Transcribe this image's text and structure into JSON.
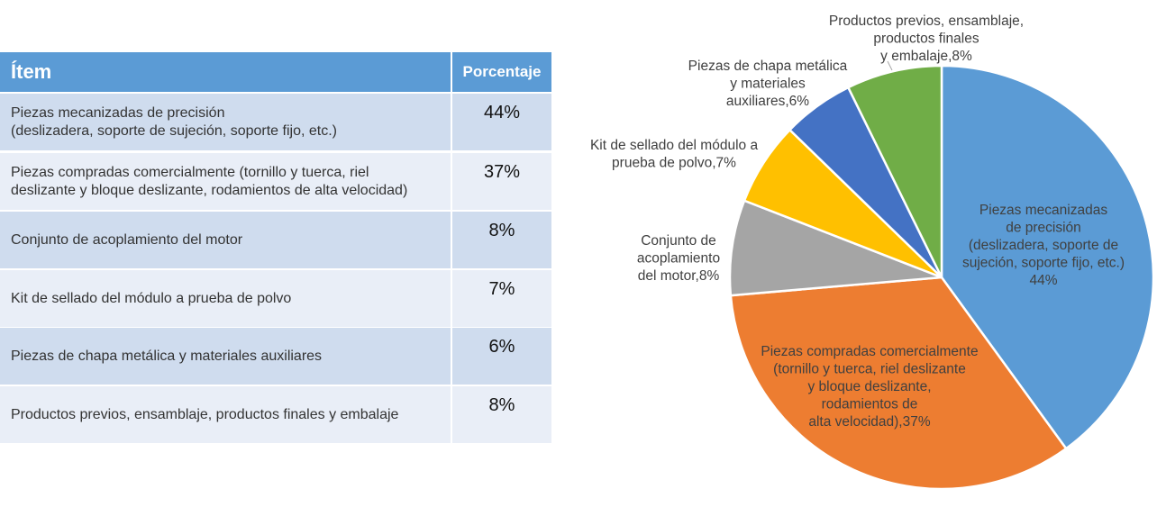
{
  "table": {
    "headers": {
      "item": "Ítem",
      "percent": "Porcentaje"
    },
    "header_color": "#5b9bd5",
    "row_colors": [
      "#cfdcee",
      "#e9eef7"
    ],
    "rows": [
      {
        "item": [
          "Piezas mecanizadas de precisión",
          "(deslizadera, soporte de sujeción, soporte fijo, etc.)"
        ],
        "percent": "44%"
      },
      {
        "item": [
          "Piezas compradas comercialmente (tornillo y tuerca, riel",
          "deslizante y bloque deslizante, rodamientos de alta velocidad)"
        ],
        "percent": "37%"
      },
      {
        "item": [
          "Conjunto de acoplamiento del motor"
        ],
        "percent": "8%"
      },
      {
        "item": [
          "Kit de sellado del módulo a prueba de polvo"
        ],
        "percent": "7%"
      },
      {
        "item": [
          "Piezas de chapa metálica y materiales auxiliares"
        ],
        "percent": "6%"
      },
      {
        "item": [
          "Productos previos, ensamblaje, productos finales y embalaje"
        ],
        "percent": "8%"
      }
    ]
  },
  "chart_data": {
    "type": "pie",
    "start": "top, clockwise",
    "slices": [
      {
        "label": [
          "Piezas mecanizadas",
          "de precisión",
          "(deslizadera, soporte de",
          "sujeción, soporte fijo, etc.)",
          "44%"
        ],
        "value": 44,
        "color": "#5b9bd5"
      },
      {
        "label": [
          "Piezas compradas comercialmente",
          "(tornillo y tuerca, riel deslizante",
          "y bloque deslizante,",
          "rodamientos de",
          "alta velocidad),37%"
        ],
        "value": 37,
        "color": "#ed7d31"
      },
      {
        "label": [
          "Conjunto de",
          "acoplamiento",
          "del motor,8%"
        ],
        "value": 8,
        "color": "#a5a5a5"
      },
      {
        "label": [
          "Kit de sellado del módulo a",
          "prueba de polvo,7%"
        ],
        "value": 7,
        "color": "#ffc000"
      },
      {
        "label": [
          "Piezas de chapa metálica",
          "y materiales",
          "auxiliares,6%"
        ],
        "value": 6,
        "color": "#4472c4"
      },
      {
        "label": [
          "Productos previos, ensamblaje,",
          "productos finales",
          "y embalaje,8%"
        ],
        "value": 8,
        "color": "#70ad47"
      }
    ]
  }
}
